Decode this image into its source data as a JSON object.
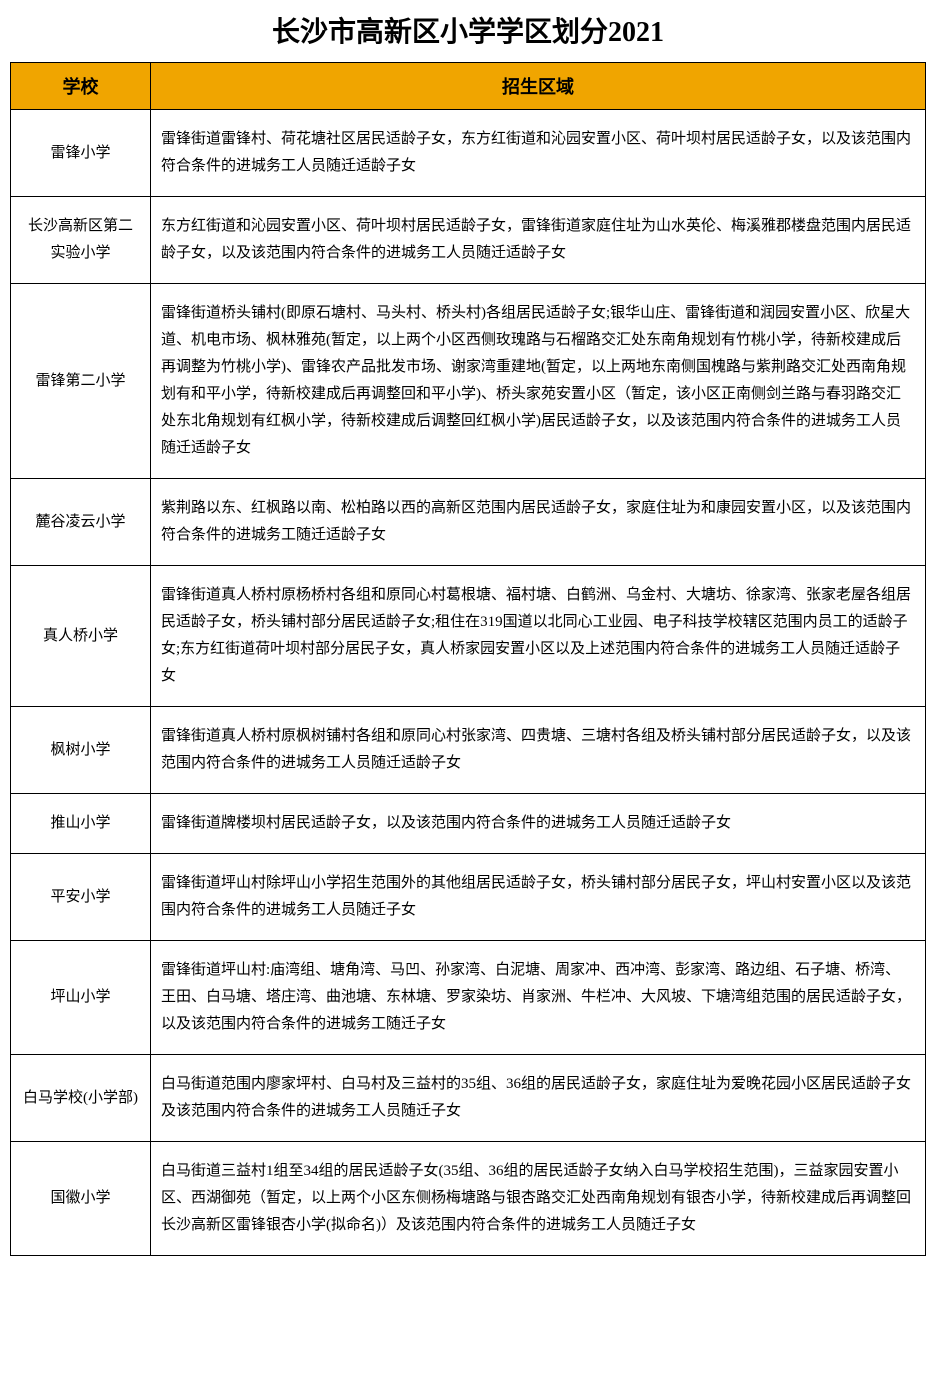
{
  "title": "长沙市高新区小学学区划分2021",
  "header_bg_color": "#f0a500",
  "border_color": "#000000",
  "columns": {
    "school": "学校",
    "area": "招生区域"
  },
  "rows": [
    {
      "school": "雷锋小学",
      "area": "雷锋街道雷锋村、荷花塘社区居民适龄子女，东方红街道和沁园安置小区、荷叶坝村居民适龄子女，以及该范围内符合条件的进城务工人员随迁适龄子女"
    },
    {
      "school": "长沙高新区第二实验小学",
      "area": "东方红街道和沁园安置小区、荷叶坝村居民适龄子女，雷锋街道家庭住址为山水英伦、梅溪雅郡楼盘范围内居民适龄子女，以及该范围内符合条件的进城务工人员随迁适龄子女"
    },
    {
      "school": "雷锋第二小学",
      "area": "雷锋街道桥头铺村(即原石塘村、马头村、桥头村)各组居民适龄子女;银华山庄、雷锋街道和润园安置小区、欣星大道、机电市场、枫林雅苑(暂定，以上两个小区西侧玫瑰路与石榴路交汇处东南角规划有竹桃小学，待新校建成后再调整为竹桃小学)、雷锋农产品批发市场、谢家湾重建地(暂定，以上两地东南侧国槐路与紫荆路交汇处西南角规划有和平小学，待新校建成后再调整回和平小学)、桥头家苑安置小区（暂定，该小区正南侧剑兰路与春羽路交汇处东北角规划有红枫小学，待新校建成后调整回红枫小学)居民适龄子女，以及该范围内符合条件的进城务工人员随迁适龄子女"
    },
    {
      "school": "麓谷凌云小学",
      "area": "紫荆路以东、红枫路以南、松柏路以西的高新区范围内居民适龄子女，家庭住址为和康园安置小区，以及该范围内符合条件的进城务工随迁适龄子女"
    },
    {
      "school": "真人桥小学",
      "area": "雷锋街道真人桥村原杨桥村各组和原同心村葛根塘、福村塘、白鹤洲、乌金村、大塘坊、徐家湾、张家老屋各组居民适龄子女，桥头铺村部分居民适龄子女;租住在319国道以北同心工业园、电子科技学校辖区范围内员工的适龄子女;东方红街道荷叶坝村部分居民子女，真人桥家园安置小区以及上述范围内符合条件的进城务工人员随迁适龄子女"
    },
    {
      "school": "枫树小学",
      "area": "雷锋街道真人桥村原枫树铺村各组和原同心村张家湾、四贵塘、三塘村各组及桥头铺村部分居民适龄子女，以及该范围内符合条件的进城务工人员随迁适龄子女"
    },
    {
      "school": "推山小学",
      "area": "雷锋街道牌楼坝村居民适龄子女，以及该范围内符合条件的进城务工人员随迁适龄子女"
    },
    {
      "school": "平安小学",
      "area": "雷锋街道坪山村除坪山小学招生范围外的其他组居民适龄子女，桥头铺村部分居民子女，坪山村安置小区以及该范围内符合条件的进城务工人员随迁子女"
    },
    {
      "school": "坪山小学",
      "area": "雷锋街道坪山村:庙湾组、塘角湾、马凹、孙家湾、白泥塘、周家冲、西冲湾、彭家湾、路边组、石子塘、桥湾、王田、白马塘、塔庄湾、曲池塘、东林塘、罗家染坊、肖家洲、牛栏冲、大风坡、下塘湾组范围的居民适龄子女，以及该范围内符合条件的进城务工随迁子女"
    },
    {
      "school": "白马学校(小学部)",
      "area": "白马街道范围内廖家坪村、白马村及三益村的35组、36组的居民适龄子女，家庭住址为爱晚花园小区居民适龄子女及该范围内符合条件的进城务工人员随迁子女"
    },
    {
      "school": "国徽小学",
      "area": "白马街道三益村1组至34组的居民适龄子女(35组、36组的居民适龄子女纳入白马学校招生范围)，三益家园安置小区、西湖御苑（暂定，以上两个小区东侧杨梅塘路与银杏路交汇处西南角规划有银杏小学，待新校建成后再调整回长沙高新区雷锋银杏小学(拟命名)）及该范围内符合条件的进城务工人员随迁子女"
    }
  ]
}
